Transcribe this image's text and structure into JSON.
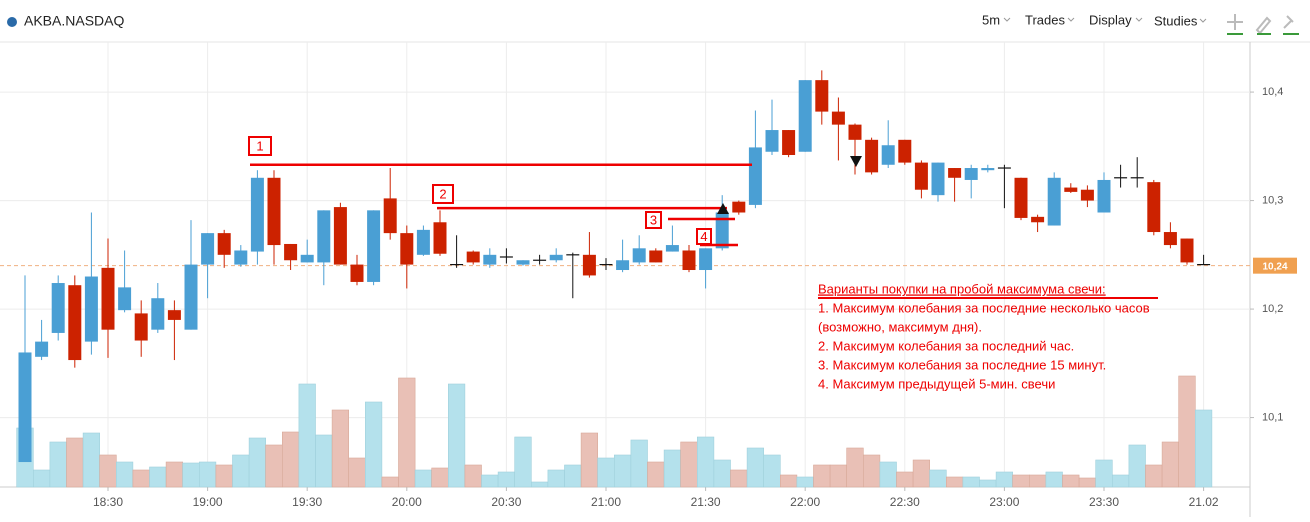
{
  "header": {
    "symbol": "AKBA.NASDAQ",
    "menu": [
      "5m",
      "Trades",
      "Display",
      "Studies"
    ]
  },
  "chart_data": {
    "type": "candlestick",
    "categories": [
      null,
      null,
      null,
      null,
      null,
      "18:30",
      null,
      null,
      null,
      null,
      null,
      "19:00",
      null,
      null,
      null,
      null,
      null,
      "19:30",
      null,
      null,
      null,
      null,
      null,
      "20:00",
      null,
      null,
      null,
      null,
      null,
      "20:30",
      null,
      null,
      null,
      null,
      null,
      "21:00",
      null,
      null,
      null,
      null,
      null,
      "21:30",
      null,
      null,
      null,
      null,
      null,
      "22:00",
      null,
      null,
      null,
      null,
      null,
      "22:30",
      null,
      null,
      null,
      null,
      null,
      "23:00",
      null,
      null,
      null,
      null,
      null,
      "23:30",
      null,
      null,
      null,
      null,
      null,
      "21.02"
    ],
    "open": [
      10.059,
      10.156,
      10.178,
      10.222,
      10.17,
      10.238,
      10.199,
      10.196,
      10.181,
      10.199,
      10.181,
      10.241,
      10.27,
      10.241,
      10.253,
      10.321,
      10.26,
      10.243,
      10.243,
      10.294,
      10.241,
      10.225,
      10.302,
      10.27,
      10.25,
      10.28,
      10.241,
      10.253,
      10.241,
      10.248,
      10.241,
      10.245,
      10.245,
      10.25,
      10.25,
      10.241,
      10.236,
      10.243,
      10.254,
      10.253,
      10.254,
      10.236,
      10.256,
      10.299,
      10.296,
      10.345,
      10.365,
      10.345,
      10.411,
      10.382,
      10.37,
      10.356,
      10.333,
      10.356,
      10.335,
      10.305,
      10.33,
      10.319,
      10.328,
      10.33,
      10.321,
      10.285,
      10.277,
      10.312,
      10.31,
      10.289,
      10.321,
      10.321,
      10.317,
      10.271,
      10.265,
      10.241
    ],
    "high": [
      10.231,
      10.19,
      10.231,
      10.231,
      10.289,
      10.265,
      10.254,
      10.208,
      10.224,
      10.208,
      10.282,
      10.27,
      10.273,
      10.259,
      10.328,
      10.328,
      10.26,
      10.264,
      10.291,
      10.298,
      10.25,
      10.291,
      10.33,
      10.277,
      10.277,
      10.291,
      10.268,
      10.254,
      10.256,
      10.256,
      10.245,
      10.25,
      10.256,
      10.252,
      10.271,
      10.247,
      10.264,
      10.268,
      10.256,
      10.277,
      10.259,
      10.256,
      10.305,
      10.3,
      10.383,
      10.393,
      10.365,
      10.411,
      10.42,
      10.395,
      10.371,
      10.358,
      10.374,
      10.356,
      10.337,
      10.335,
      10.33,
      10.333,
      10.333,
      10.333,
      10.321,
      10.287,
      10.326,
      10.316,
      10.314,
      10.326,
      10.333,
      10.34,
      10.319,
      10.28,
      10.265,
      10.25
    ],
    "low": [
      10.059,
      10.153,
      10.171,
      10.146,
      10.158,
      10.155,
      10.197,
      10.156,
      10.178,
      10.153,
      10.181,
      10.21,
      10.238,
      10.239,
      10.241,
      10.241,
      10.236,
      10.243,
      10.222,
      10.241,
      10.222,
      10.222,
      10.264,
      10.219,
      10.249,
      10.249,
      10.238,
      10.241,
      10.238,
      10.242,
      10.24,
      10.241,
      10.243,
      10.21,
      10.229,
      10.236,
      10.234,
      10.241,
      10.243,
      10.253,
      10.234,
      10.219,
      10.254,
      10.287,
      10.293,
      10.342,
      10.34,
      10.345,
      10.37,
      10.337,
      10.324,
      10.324,
      10.33,
      10.333,
      10.302,
      10.299,
      10.299,
      10.302,
      10.326,
      10.293,
      10.282,
      10.271,
      10.277,
      10.307,
      10.294,
      10.289,
      10.312,
      10.312,
      10.268,
      10.256,
      10.241,
      10.241
    ],
    "close": [
      10.16,
      10.17,
      10.224,
      10.153,
      10.23,
      10.181,
      10.22,
      10.171,
      10.21,
      10.19,
      10.241,
      10.27,
      10.25,
      10.254,
      10.321,
      10.259,
      10.245,
      10.25,
      10.291,
      10.241,
      10.225,
      10.291,
      10.27,
      10.241,
      10.273,
      10.251,
      10.241,
      10.243,
      10.25,
      10.248,
      10.245,
      10.245,
      10.25,
      10.25,
      10.231,
      10.241,
      10.245,
      10.256,
      10.243,
      10.259,
      10.236,
      10.256,
      10.289,
      10.289,
      10.349,
      10.365,
      10.342,
      10.411,
      10.382,
      10.37,
      10.356,
      10.326,
      10.351,
      10.335,
      10.31,
      10.335,
      10.321,
      10.33,
      10.33,
      10.33,
      10.284,
      10.28,
      10.321,
      10.308,
      10.3,
      10.319,
      10.321,
      10.321,
      10.271,
      10.259,
      10.243,
      10.241
    ],
    "volume": [
      59,
      17,
      45,
      49,
      54,
      32,
      25,
      17,
      20,
      25,
      24,
      25,
      22,
      32,
      49,
      42,
      55,
      103,
      52,
      77,
      29,
      85,
      10,
      109,
      17,
      19,
      103,
      22,
      12,
      15,
      50,
      5,
      17,
      22,
      54,
      29,
      32,
      47,
      25,
      37,
      45,
      50,
      27,
      17,
      39,
      32,
      12,
      10,
      22,
      22,
      39,
      32,
      25,
      15,
      27,
      17,
      10,
      10,
      7,
      15,
      12,
      12,
      15,
      12,
      9,
      27,
      12,
      42,
      22,
      45,
      111,
      77
    ],
    "volume_lim": [
      0,
      120
    ],
    "ylim": [
      10.036,
      10.448
    ],
    "yticks": [
      {
        "value": 10.1,
        "label": "10,1"
      },
      {
        "value": 10.2,
        "label": "10,2"
      },
      {
        "value": 10.3,
        "label": "10,3"
      },
      {
        "value": 10.4,
        "label": "10,4"
      }
    ],
    "grid": true,
    "up_color": "#4a9fd4",
    "down_color": "#cc2200",
    "up_volume_color": "#b4e1ec",
    "down_volume_color": "#e9c0b6",
    "last_price": {
      "value": 10.24,
      "label": "10,24"
    },
    "annotations": [
      {
        "label": "1",
        "level": 10.333
      },
      {
        "label": "2",
        "level": 10.293
      },
      {
        "label": "3",
        "level": 10.283
      },
      {
        "label": "4",
        "level": 10.259
      }
    ],
    "notes": {
      "title": "Варианты покупки на пробой максимума свечи:",
      "lines": [
        "1. Максимум колебания за последние несколько часов",
        "(возможно, максимум дня).",
        "2. Максимум колебания за последний час.",
        "3. Максимум колебания за последние 15 минут.",
        "4. Максимум предыдущей 5-мин. свечи"
      ]
    }
  }
}
